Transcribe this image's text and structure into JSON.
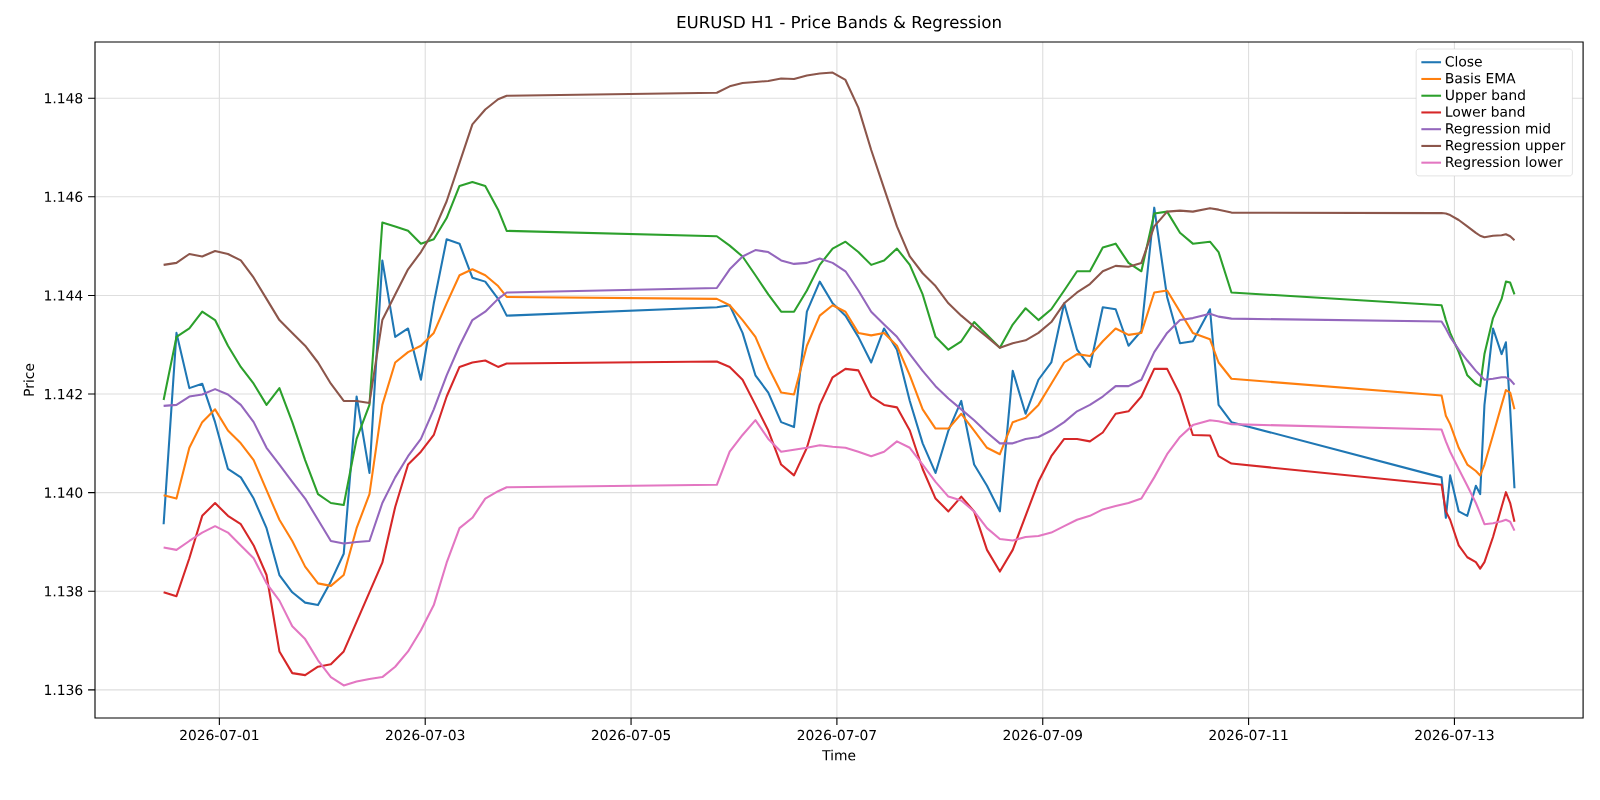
{
  "chart_data": {
    "type": "line",
    "title": "EURUSD H1 - Price Bands & Regression",
    "xlabel": "Time",
    "ylabel": "Price",
    "x": [
      "2026-06-30T11:00",
      "2026-06-30T14:00",
      "2026-06-30T17:00",
      "2026-06-30T20:00",
      "2026-06-30T23:00",
      "2026-07-01T02:00",
      "2026-07-01T05:00",
      "2026-07-01T08:00",
      "2026-07-01T11:00",
      "2026-07-01T14:00",
      "2026-07-01T17:00",
      "2026-07-01T20:00",
      "2026-07-01T23:00",
      "2026-07-02T02:00",
      "2026-07-02T05:00",
      "2026-07-02T08:00",
      "2026-07-02T11:00",
      "2026-07-02T14:00",
      "2026-07-02T17:00",
      "2026-07-02T20:00",
      "2026-07-02T23:00",
      "2026-07-03T02:00",
      "2026-07-03T05:00",
      "2026-07-03T08:00",
      "2026-07-03T11:00",
      "2026-07-03T14:00",
      "2026-07-03T17:00",
      "2026-07-03T19:00",
      "2026-07-05T20:00",
      "2026-07-05T23:00",
      "2026-07-06T02:00",
      "2026-07-06T05:00",
      "2026-07-06T08:00",
      "2026-07-06T11:00",
      "2026-07-06T14:00",
      "2026-07-06T17:00",
      "2026-07-06T20:00",
      "2026-07-06T23:00",
      "2026-07-07T02:00",
      "2026-07-07T05:00",
      "2026-07-07T08:00",
      "2026-07-07T11:00",
      "2026-07-07T14:00",
      "2026-07-07T17:00",
      "2026-07-07T20:00",
      "2026-07-07T23:00",
      "2026-07-08T02:00",
      "2026-07-08T05:00",
      "2026-07-08T08:00",
      "2026-07-08T11:00",
      "2026-07-08T14:00",
      "2026-07-08T17:00",
      "2026-07-08T20:00",
      "2026-07-08T23:00",
      "2026-07-09T02:00",
      "2026-07-09T05:00",
      "2026-07-09T08:00",
      "2026-07-09T11:00",
      "2026-07-09T14:00",
      "2026-07-09T17:00",
      "2026-07-09T20:00",
      "2026-07-09T23:00",
      "2026-07-10T02:00",
      "2026-07-10T05:00",
      "2026-07-10T08:00",
      "2026-07-10T11:00",
      "2026-07-10T15:00",
      "2026-07-10T17:00",
      "2026-07-10T20:00",
      "2026-07-12T21:00",
      "2026-07-12T22:00",
      "2026-07-12T23:00",
      "2026-07-13T01:00",
      "2026-07-13T03:00",
      "2026-07-13T05:00",
      "2026-07-13T06:00",
      "2026-07-13T07:00",
      "2026-07-13T09:00",
      "2026-07-13T11:00",
      "2026-07-13T12:00",
      "2026-07-13T13:00",
      "2026-07-13T14:00"
    ],
    "series": [
      {
        "name": "Close",
        "color": "#1f77b4",
        "values": [
          1.13936,
          1.14324,
          1.14212,
          1.14221,
          1.14143,
          1.14048,
          1.14031,
          1.13988,
          1.13928,
          1.13833,
          1.13798,
          1.13777,
          1.13772,
          1.1382,
          1.13876,
          1.14195,
          1.1404,
          1.14471,
          1.14316,
          1.14333,
          1.14229,
          1.14384,
          1.14514,
          1.14505,
          1.14436,
          1.14428,
          1.14393,
          1.14359,
          1.14376,
          1.1438,
          1.14324,
          1.14238,
          1.14203,
          1.14143,
          1.14133,
          1.14367,
          1.14428,
          1.14384,
          1.14359,
          1.14316,
          1.14264,
          1.14333,
          1.1429,
          1.14186,
          1.141,
          1.1404,
          1.14126,
          1.14186,
          1.14057,
          1.14014,
          1.13962,
          1.14247,
          1.1416,
          1.14229,
          1.14264,
          1.14384,
          1.1429,
          1.14255,
          1.14376,
          1.14372,
          1.14298,
          1.14328,
          1.14578,
          1.14397,
          1.14303,
          1.14307,
          1.14372,
          1.14178,
          1.14143,
          1.14031,
          1.13949,
          1.14035,
          1.13962,
          1.13953,
          1.14014,
          1.13997,
          1.14178,
          1.14333,
          1.14281,
          1.14305,
          1.14169,
          1.14009
        ]
      },
      {
        "name": "Basis EMA",
        "color": "#ff7f0e",
        "values": [
          1.13995,
          1.13988,
          1.14091,
          1.14143,
          1.14169,
          1.14126,
          1.141,
          1.14066,
          1.14005,
          1.13945,
          1.13902,
          1.1385,
          1.13816,
          1.13811,
          1.13833,
          1.13928,
          1.13997,
          1.14178,
          1.14264,
          1.14285,
          1.14298,
          1.14324,
          1.14384,
          1.14441,
          1.14453,
          1.14441,
          1.14419,
          1.14397,
          1.14393,
          1.1438,
          1.1435,
          1.14316,
          1.14255,
          1.14203,
          1.14199,
          1.14298,
          1.14359,
          1.1438,
          1.14367,
          1.14324,
          1.14319,
          1.14324,
          1.14298,
          1.14238,
          1.14169,
          1.1413,
          1.1413,
          1.1416,
          1.14126,
          1.14091,
          1.14078,
          1.14143,
          1.14152,
          1.14178,
          1.14221,
          1.14264,
          1.14281,
          1.14277,
          1.14307,
          1.14333,
          1.1432,
          1.14324,
          1.14406,
          1.1441,
          1.14367,
          1.14324,
          1.14311,
          1.14264,
          1.14231,
          1.14197,
          1.14156,
          1.14139,
          1.14091,
          1.14057,
          1.14044,
          1.14035,
          1.14057,
          1.14117,
          1.14178,
          1.14208,
          1.14203,
          1.14169
        ]
      },
      {
        "name": "Upper band",
        "color": "#2ca02c",
        "values": [
          1.14188,
          1.14316,
          1.14333,
          1.14367,
          1.1435,
          1.14298,
          1.14255,
          1.14221,
          1.14178,
          1.14212,
          1.14143,
          1.14066,
          1.13997,
          1.13979,
          1.13975,
          1.14109,
          1.14178,
          1.14548,
          1.1454,
          1.14531,
          1.14505,
          1.14514,
          1.14557,
          1.14622,
          1.1463,
          1.14622,
          1.14574,
          1.14531,
          1.1452,
          1.14501,
          1.14479,
          1.14441,
          1.14402,
          1.14367,
          1.14367,
          1.1441,
          1.14462,
          1.14495,
          1.14509,
          1.14488,
          1.14462,
          1.14471,
          1.14495,
          1.14462,
          1.14402,
          1.14316,
          1.1429,
          1.14307,
          1.14346,
          1.1432,
          1.14294,
          1.14341,
          1.14374,
          1.1435,
          1.14372,
          1.1441,
          1.14449,
          1.14449,
          1.14497,
          1.14505,
          1.14466,
          1.14449,
          1.14566,
          1.1457,
          1.14527,
          1.14505,
          1.14509,
          1.14488,
          1.14406,
          1.1438,
          1.1435,
          1.14324,
          1.14285,
          1.14238,
          1.14221,
          1.14216,
          1.14281,
          1.14354,
          1.14393,
          1.14428,
          1.14426,
          1.14402
        ]
      },
      {
        "name": "Lower band",
        "color": "#d62728",
        "values": [
          1.13798,
          1.1379,
          1.13867,
          1.13953,
          1.13979,
          1.13953,
          1.13936,
          1.13893,
          1.13833,
          1.13678,
          1.13634,
          1.1363,
          1.13647,
          1.13652,
          1.13678,
          1.13738,
          1.13798,
          1.13858,
          1.13971,
          1.14057,
          1.14083,
          1.14117,
          1.14195,
          1.14255,
          1.14264,
          1.14268,
          1.14255,
          1.14262,
          1.14266,
          1.14255,
          1.14229,
          1.14178,
          1.14126,
          1.14057,
          1.14035,
          1.14091,
          1.14178,
          1.14234,
          1.14251,
          1.14248,
          1.14195,
          1.14178,
          1.14173,
          1.14126,
          1.14048,
          1.13988,
          1.13962,
          1.13992,
          1.13962,
          1.13884,
          1.1384,
          1.13884,
          1.13953,
          1.14022,
          1.14074,
          1.14109,
          1.14109,
          1.14104,
          1.14122,
          1.1416,
          1.14165,
          1.14195,
          1.14251,
          1.14251,
          1.14199,
          1.14117,
          1.14116,
          1.14074,
          1.14059,
          1.14016,
          1.13962,
          1.13945,
          1.13893,
          1.13869,
          1.13859,
          1.13846,
          1.13859,
          1.1391,
          1.13971,
          1.14001,
          1.13979,
          1.13941
        ]
      },
      {
        "name": "Regression mid",
        "color": "#9467bd",
        "values": [
          1.14176,
          1.14178,
          1.14195,
          1.14199,
          1.1421,
          1.14199,
          1.14178,
          1.14143,
          1.14091,
          1.14057,
          1.14022,
          1.13988,
          1.13945,
          1.13902,
          1.13897,
          1.139,
          1.13902,
          1.13979,
          1.14031,
          1.14074,
          1.14109,
          1.14169,
          1.14238,
          1.14298,
          1.1435,
          1.14367,
          1.14393,
          1.14406,
          1.14415,
          1.14453,
          1.14479,
          1.14492,
          1.14488,
          1.14471,
          1.14464,
          1.14466,
          1.14475,
          1.14466,
          1.14449,
          1.1441,
          1.14367,
          1.14341,
          1.14316,
          1.14281,
          1.14247,
          1.14216,
          1.14191,
          1.14169,
          1.14147,
          1.14122,
          1.141,
          1.141,
          1.14109,
          1.14113,
          1.14126,
          1.14143,
          1.14165,
          1.14178,
          1.14195,
          1.14216,
          1.14216,
          1.14229,
          1.14285,
          1.14324,
          1.1435,
          1.14354,
          1.14363,
          1.14357,
          1.14353,
          1.14347,
          1.14333,
          1.14316,
          1.1429,
          1.14268,
          1.14247,
          1.14238,
          1.14229,
          1.14231,
          1.14234,
          1.14234,
          1.14229,
          1.14219
        ]
      },
      {
        "name": "Regression upper",
        "color": "#8c564b",
        "values": [
          1.14462,
          1.14466,
          1.14484,
          1.14479,
          1.1449,
          1.14484,
          1.14471,
          1.14436,
          1.14393,
          1.1435,
          1.14324,
          1.14298,
          1.14264,
          1.14221,
          1.14186,
          1.14186,
          1.14182,
          1.1435,
          1.14402,
          1.14453,
          1.14488,
          1.14531,
          1.14591,
          1.14669,
          1.14747,
          1.14777,
          1.14798,
          1.14805,
          1.14811,
          1.14824,
          1.14831,
          1.14833,
          1.14835,
          1.1484,
          1.14839,
          1.14846,
          1.1485,
          1.14852,
          1.14837,
          1.14781,
          1.14695,
          1.14617,
          1.1454,
          1.14479,
          1.14445,
          1.14419,
          1.14384,
          1.14359,
          1.14337,
          1.14316,
          1.14294,
          1.14303,
          1.14309,
          1.14324,
          1.14346,
          1.14384,
          1.14406,
          1.14423,
          1.14449,
          1.1446,
          1.14458,
          1.14466,
          1.1454,
          1.1457,
          1.14572,
          1.1457,
          1.14577,
          1.14574,
          1.14568,
          1.14567,
          1.14566,
          1.14563,
          1.14553,
          1.1454,
          1.14527,
          1.14521,
          1.14518,
          1.14521,
          1.14522,
          1.14524,
          1.1452,
          1.14512
        ]
      },
      {
        "name": "Regression lower",
        "color": "#e377c2",
        "values": [
          1.13889,
          1.13884,
          1.13902,
          1.13919,
          1.13932,
          1.13919,
          1.13893,
          1.13867,
          1.13816,
          1.13781,
          1.13729,
          1.13703,
          1.1366,
          1.13626,
          1.13609,
          1.13617,
          1.13622,
          1.13626,
          1.13647,
          1.13678,
          1.13721,
          1.13772,
          1.13858,
          1.13928,
          1.13949,
          1.13988,
          1.14003,
          1.14011,
          1.14016,
          1.14083,
          1.14117,
          1.14147,
          1.14109,
          1.14083,
          1.14087,
          1.14091,
          1.14096,
          1.14093,
          1.14091,
          1.14083,
          1.14074,
          1.14083,
          1.14104,
          1.14091,
          1.14057,
          1.14022,
          1.13992,
          1.13984,
          1.13962,
          1.13928,
          1.13906,
          1.13903,
          1.1391,
          1.13912,
          1.13919,
          1.13932,
          1.13945,
          1.13953,
          1.13966,
          1.13973,
          1.13979,
          1.13988,
          1.14031,
          1.14078,
          1.14113,
          1.14137,
          1.14147,
          1.14145,
          1.14139,
          1.14128,
          1.14104,
          1.14083,
          1.14048,
          1.14014,
          1.13979,
          1.13958,
          1.13936,
          1.13938,
          1.13942,
          1.13945,
          1.13941,
          1.13923
        ]
      }
    ],
    "xlim": [
      "2026-06-29T19:00",
      "2026-07-14T06:00"
    ],
    "xticks": [
      "2026-07-01",
      "2026-07-03",
      "2026-07-05",
      "2026-07-07",
      "2026-07-09",
      "2026-07-11",
      "2026-07-13"
    ],
    "ylim": [
      1.13543,
      1.14914
    ],
    "yticks": [
      1.136,
      1.138,
      {
        "value": 1.14,
        "label": "1.140"
      },
      1.142,
      1.144,
      1.146,
      1.148
    ],
    "grid": true,
    "legend": "top right",
    "marker": "none",
    "line_style": "solid"
  }
}
